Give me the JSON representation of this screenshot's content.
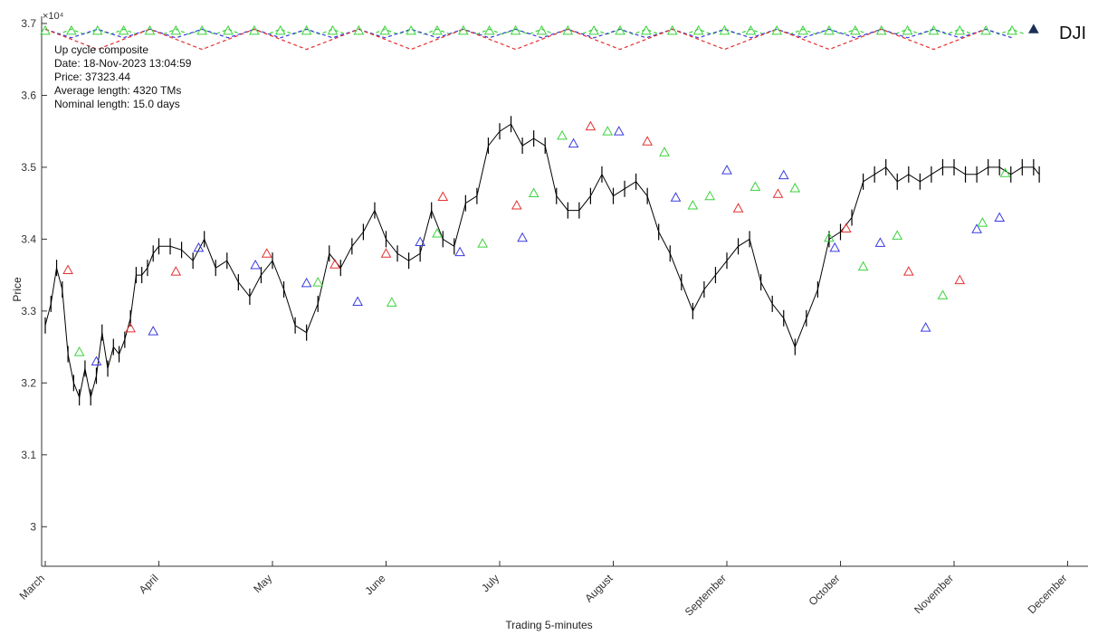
{
  "ticker": "DJI",
  "info": {
    "title": "Up cycle composite",
    "date": "Date: 18-Nov-2023 13:04:59",
    "price": "Price: 37323.44",
    "avg_length": "Average length: 4320 TMs",
    "nominal_length": "Nominal length: 15.0 days"
  },
  "chart_data": {
    "type": "line",
    "xlabel": "Trading 5-minutes",
    "ylabel": "Price",
    "y_exponent_label": "×10⁴",
    "ylim": [
      2.945,
      3.71
    ],
    "yticks": [
      3,
      3.1,
      3.2,
      3.3,
      3.4,
      3.5,
      3.6,
      3.7
    ],
    "xticks": [
      "March",
      "April",
      "May",
      "June",
      "July",
      "August",
      "September",
      "October",
      "November",
      "December"
    ],
    "grid": false,
    "price_series": {
      "color": "#000000",
      "x_month_index": [
        0.0,
        0.05,
        0.1,
        0.15,
        0.2,
        0.25,
        0.3,
        0.35,
        0.4,
        0.45,
        0.5,
        0.55,
        0.6,
        0.65,
        0.7,
        0.75,
        0.8,
        0.85,
        0.9,
        0.95,
        1.0,
        1.1,
        1.2,
        1.3,
        1.4,
        1.5,
        1.6,
        1.7,
        1.8,
        1.9,
        2.0,
        2.1,
        2.2,
        2.3,
        2.4,
        2.5,
        2.6,
        2.7,
        2.8,
        2.9,
        3.0,
        3.1,
        3.2,
        3.3,
        3.4,
        3.5,
        3.6,
        3.7,
        3.8,
        3.9,
        4.0,
        4.1,
        4.2,
        4.3,
        4.4,
        4.5,
        4.6,
        4.7,
        4.8,
        4.9,
        5.0,
        5.1,
        5.2,
        5.3,
        5.4,
        5.5,
        5.6,
        5.7,
        5.8,
        5.9,
        6.0,
        6.1,
        6.2,
        6.3,
        6.4,
        6.5,
        6.6,
        6.7,
        6.8,
        6.9,
        7.0,
        7.1,
        7.2,
        7.3,
        7.4,
        7.5,
        7.6,
        7.7,
        7.8,
        7.9,
        8.0,
        8.1,
        8.2,
        8.3,
        8.4,
        8.5,
        8.6,
        8.7,
        8.75
      ],
      "values": [
        3.28,
        3.31,
        3.36,
        3.33,
        3.24,
        3.2,
        3.18,
        3.22,
        3.18,
        3.21,
        3.27,
        3.22,
        3.25,
        3.24,
        3.26,
        3.29,
        3.35,
        3.35,
        3.36,
        3.38,
        3.39,
        3.39,
        3.385,
        3.37,
        3.4,
        3.36,
        3.37,
        3.34,
        3.32,
        3.35,
        3.37,
        3.33,
        3.28,
        3.27,
        3.31,
        3.38,
        3.36,
        3.39,
        3.41,
        3.44,
        3.4,
        3.38,
        3.37,
        3.38,
        3.44,
        3.4,
        3.39,
        3.45,
        3.46,
        3.53,
        3.55,
        3.56,
        3.53,
        3.54,
        3.53,
        3.46,
        3.44,
        3.44,
        3.46,
        3.49,
        3.46,
        3.47,
        3.48,
        3.46,
        3.41,
        3.38,
        3.34,
        3.3,
        3.33,
        3.35,
        3.37,
        3.39,
        3.4,
        3.34,
        3.31,
        3.29,
        3.25,
        3.29,
        3.33,
        3.4,
        3.41,
        3.43,
        3.48,
        3.49,
        3.5,
        3.48,
        3.49,
        3.48,
        3.49,
        3.5,
        3.5,
        3.49,
        3.49,
        3.5,
        3.5,
        3.49,
        3.5,
        3.5,
        3.49
      ]
    },
    "cycle_markers": {
      "red": {
        "color": "#e53030",
        "x_month_index": [
          0.2,
          0.75,
          1.15,
          1.95,
          2.55,
          3.0,
          3.5,
          4.15,
          4.8,
          5.3,
          6.1,
          6.45,
          7.05,
          7.6,
          8.05
        ],
        "values": [
          3.357,
          3.276,
          3.355,
          3.38,
          3.365,
          3.38,
          3.459,
          3.447,
          3.557,
          3.536,
          3.443,
          3.463,
          3.415,
          3.355,
          3.343
        ]
      },
      "blue": {
        "color": "#3a3ae0",
        "x_month_index": [
          0.45,
          0.95,
          1.35,
          1.85,
          2.3,
          2.75,
          3.3,
          3.65,
          4.2,
          4.65,
          5.05,
          5.55,
          6.0,
          6.5,
          6.95,
          7.35,
          7.75,
          8.2,
          8.4
        ],
        "values": [
          3.23,
          3.272,
          3.388,
          3.364,
          3.339,
          3.313,
          3.396,
          3.382,
          3.402,
          3.533,
          3.55,
          3.458,
          3.496,
          3.489,
          3.388,
          3.395,
          3.277,
          3.414,
          3.43
        ]
      },
      "green": {
        "color": "#3ad23a",
        "x_month_index": [
          0.3,
          2.4,
          3.05,
          3.45,
          3.85,
          4.3,
          4.55,
          4.95,
          5.45,
          5.7,
          5.85,
          6.25,
          6.6,
          6.9,
          7.2,
          7.5,
          7.9,
          8.25,
          8.45
        ],
        "values": [
          3.243,
          3.34,
          3.312,
          3.408,
          3.394,
          3.464,
          3.544,
          3.55,
          3.521,
          3.447,
          3.46,
          3.473,
          3.471,
          3.402,
          3.362,
          3.405,
          3.322,
          3.423,
          3.492
        ]
      },
      "current": {
        "color": "#1a2e55",
        "x_month_index": 8.7,
        "value": 3.692
      }
    },
    "cycle_composite_lines": {
      "top_value": 3.692,
      "colors": [
        "#3ad23a",
        "#3a3ae0",
        "#e53030"
      ],
      "amplitudes": [
        0.007,
        0.012,
        0.028
      ],
      "periods_months": [
        0.23,
        0.46,
        0.92
      ]
    }
  }
}
